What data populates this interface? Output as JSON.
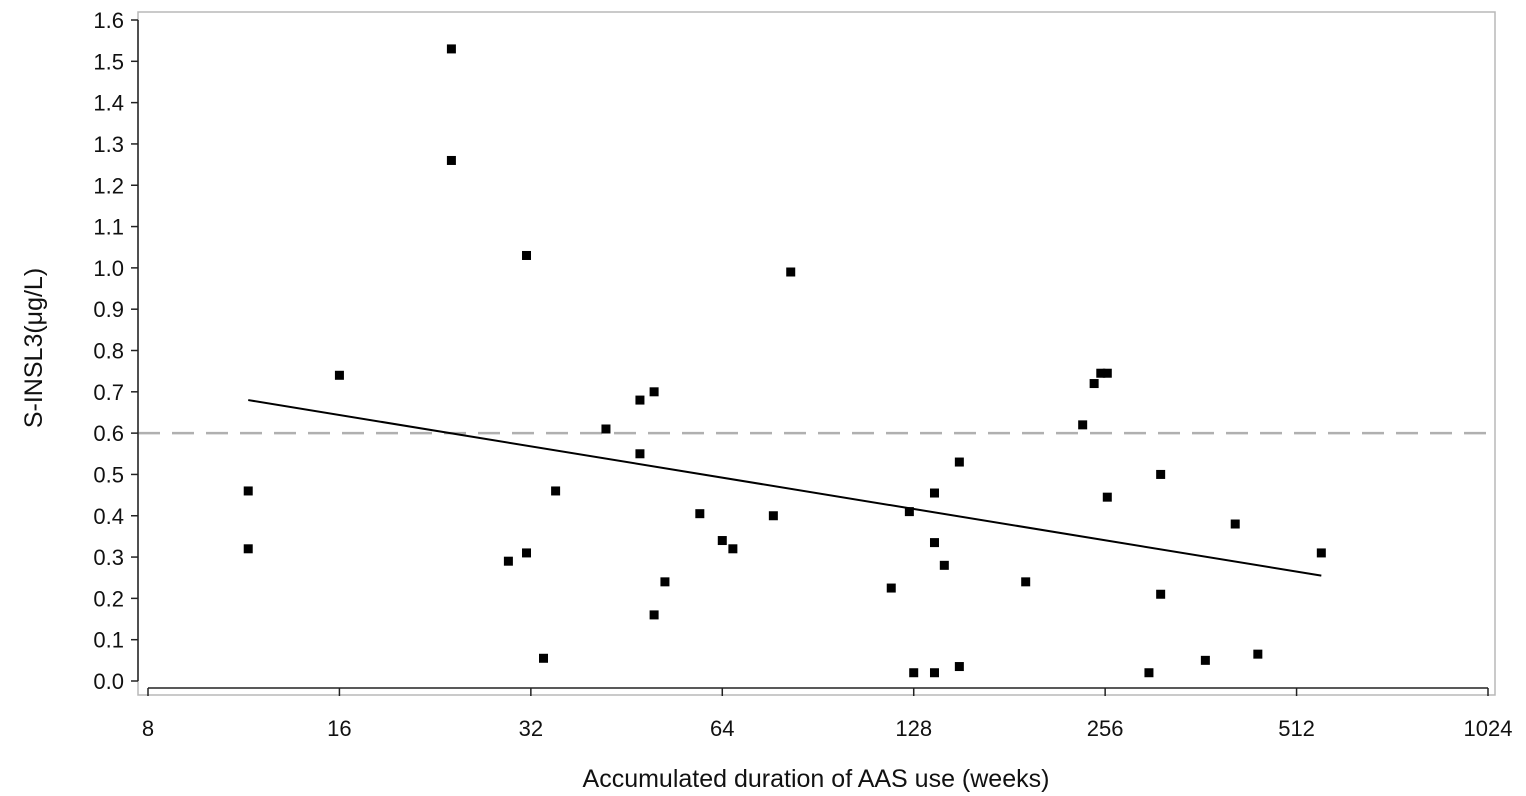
{
  "chart_data": {
    "type": "scatter",
    "title": "",
    "xlabel": "Accumulated duration of AAS use (weeks)",
    "ylabel": "S-INSL3(μg/L)",
    "x_scale": "log2",
    "xlim": [
      8,
      1024
    ],
    "ylim": [
      0.0,
      1.6
    ],
    "x_ticks": [
      8,
      16,
      32,
      64,
      128,
      256,
      512,
      1024
    ],
    "x_tick_labels": [
      "8",
      "16",
      "32",
      "64",
      "128",
      "256",
      "512",
      "1024"
    ],
    "y_ticks": [
      0.0,
      0.1,
      0.2,
      0.3,
      0.4,
      0.5,
      0.6,
      0.7,
      0.8,
      0.9,
      1.0,
      1.1,
      1.2,
      1.3,
      1.4,
      1.5,
      1.6
    ],
    "y_tick_labels": [
      "0.0",
      "0.1",
      "0.2",
      "0.3",
      "0.4",
      "0.5",
      "0.6",
      "0.7",
      "0.8",
      "0.9",
      "1.0",
      "1.1",
      "1.2",
      "1.3",
      "1.4",
      "1.5",
      "1.6"
    ],
    "grid": false,
    "legend": "none",
    "reference_line": {
      "y": 0.6,
      "style": "dashed",
      "color": "#b0b0b0"
    },
    "trend_line": {
      "x": [
        11.5,
        560
      ],
      "y": [
        0.68,
        0.255
      ],
      "color": "#000000"
    },
    "marker_color": "#000000",
    "points": [
      {
        "x": 11.5,
        "y": 0.46
      },
      {
        "x": 11.5,
        "y": 0.32
      },
      {
        "x": 16,
        "y": 0.74
      },
      {
        "x": 24,
        "y": 1.53
      },
      {
        "x": 24,
        "y": 1.26
      },
      {
        "x": 29.5,
        "y": 0.29
      },
      {
        "x": 31.5,
        "y": 1.03
      },
      {
        "x": 31.5,
        "y": 0.31
      },
      {
        "x": 33.5,
        "y": 0.055
      },
      {
        "x": 35,
        "y": 0.46
      },
      {
        "x": 42,
        "y": 0.61
      },
      {
        "x": 47.5,
        "y": 0.68
      },
      {
        "x": 47.5,
        "y": 0.55
      },
      {
        "x": 50,
        "y": 0.7
      },
      {
        "x": 50,
        "y": 0.16
      },
      {
        "x": 52,
        "y": 0.24
      },
      {
        "x": 59,
        "y": 0.405
      },
      {
        "x": 64,
        "y": 0.34
      },
      {
        "x": 66.5,
        "y": 0.32
      },
      {
        "x": 77,
        "y": 0.4
      },
      {
        "x": 82,
        "y": 0.99
      },
      {
        "x": 118,
        "y": 0.225
      },
      {
        "x": 126,
        "y": 0.41
      },
      {
        "x": 128,
        "y": 0.02
      },
      {
        "x": 138,
        "y": 0.455
      },
      {
        "x": 138,
        "y": 0.335
      },
      {
        "x": 138,
        "y": 0.02
      },
      {
        "x": 143,
        "y": 0.28
      },
      {
        "x": 151,
        "y": 0.53
      },
      {
        "x": 151,
        "y": 0.035
      },
      {
        "x": 192,
        "y": 0.24
      },
      {
        "x": 236,
        "y": 0.62
      },
      {
        "x": 246,
        "y": 0.72
      },
      {
        "x": 252,
        "y": 0.745
      },
      {
        "x": 258,
        "y": 0.745
      },
      {
        "x": 258,
        "y": 0.445
      },
      {
        "x": 300,
        "y": 0.02
      },
      {
        "x": 313,
        "y": 0.5
      },
      {
        "x": 313,
        "y": 0.21
      },
      {
        "x": 368,
        "y": 0.05
      },
      {
        "x": 410,
        "y": 0.38
      },
      {
        "x": 445,
        "y": 0.065
      },
      {
        "x": 560,
        "y": 0.31
      }
    ]
  }
}
